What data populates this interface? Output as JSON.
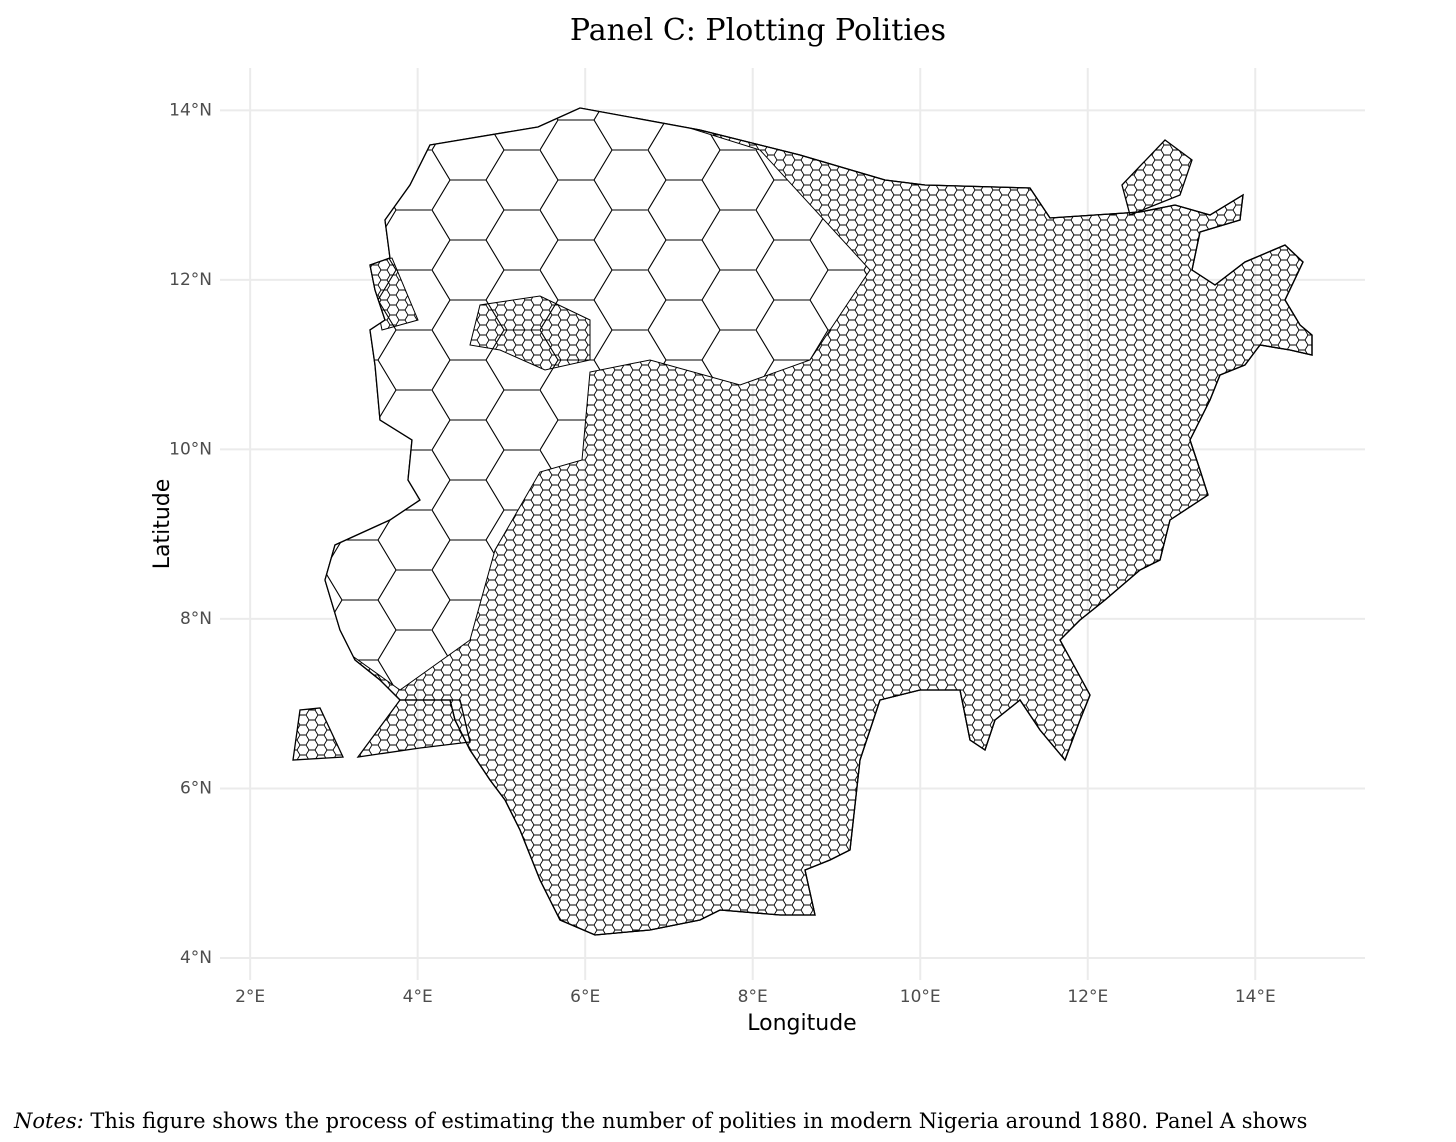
{
  "chart_data": {
    "type": "map",
    "title": "Panel C: Plotting Polities",
    "xlabel": "Longitude",
    "ylabel": "Latitude",
    "xlim": [
      1.64,
      15.31
    ],
    "ylim": [
      3.74,
      14.5
    ],
    "grid": true,
    "xticks": [
      {
        "value": 2,
        "label": "2°E"
      },
      {
        "value": 4,
        "label": "4°E"
      },
      {
        "value": 6,
        "label": "6°E"
      },
      {
        "value": 8,
        "label": "8°E"
      },
      {
        "value": 10,
        "label": "10°E"
      },
      {
        "value": 12,
        "label": "12°E"
      },
      {
        "value": 14,
        "label": "14°E"
      }
    ],
    "yticks": [
      {
        "value": 4,
        "label": "4°N"
      },
      {
        "value": 6,
        "label": "6°N"
      },
      {
        "value": 8,
        "label": "8°N"
      },
      {
        "value": 10,
        "label": "10°N"
      },
      {
        "value": 12,
        "label": "12°N"
      },
      {
        "value": 14,
        "label": "14°N"
      }
    ]
  },
  "notes": {
    "label": "Notes:",
    "text": " This figure shows the process of estimating the number of polities in modern Nigeria around 1880. Panel A shows"
  }
}
